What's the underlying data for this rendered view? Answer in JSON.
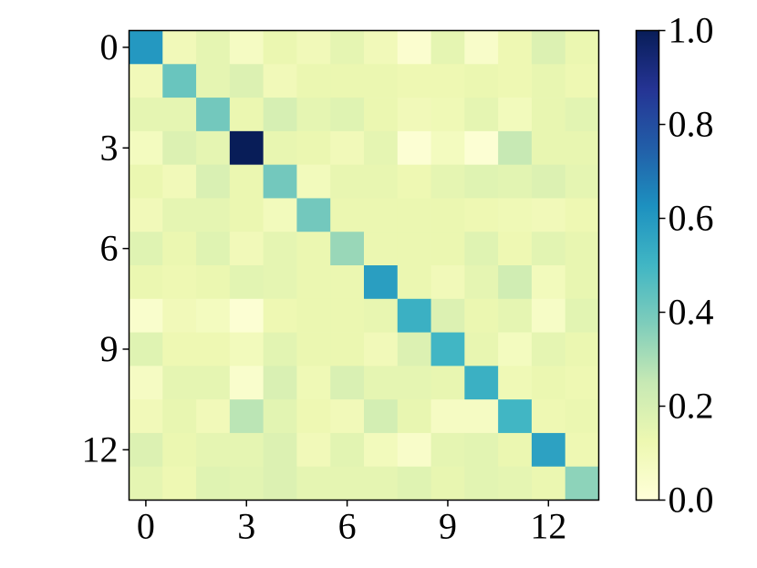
{
  "chart_data": {
    "type": "heatmap",
    "title": "",
    "xlabel": "",
    "ylabel": "",
    "rows": 14,
    "cols": 14,
    "x_ticks": [
      0,
      3,
      6,
      9,
      12
    ],
    "y_ticks": [
      0,
      3,
      6,
      9,
      12
    ],
    "x_tick_labels": [
      "0",
      "3",
      "6",
      "9",
      "12"
    ],
    "y_tick_labels": [
      "0",
      "3",
      "6",
      "9",
      "12"
    ],
    "colormap": "YlGnBu",
    "colorbar": {
      "range": [
        0.0,
        1.0
      ],
      "ticks": [
        0.0,
        0.2,
        0.4,
        0.6,
        0.8,
        1.0
      ],
      "tick_labels": [
        "0.0",
        "0.2",
        "0.4",
        "0.6",
        "0.8",
        "1.0"
      ]
    },
    "values": [
      [
        0.6,
        0.1,
        0.15,
        0.07,
        0.13,
        0.1,
        0.15,
        0.1,
        0.03,
        0.15,
        0.05,
        0.12,
        0.18,
        0.13
      ],
      [
        0.1,
        0.42,
        0.15,
        0.18,
        0.1,
        0.13,
        0.13,
        0.13,
        0.12,
        0.12,
        0.13,
        0.12,
        0.14,
        0.12
      ],
      [
        0.15,
        0.15,
        0.4,
        0.13,
        0.2,
        0.15,
        0.17,
        0.13,
        0.1,
        0.11,
        0.15,
        0.09,
        0.14,
        0.16
      ],
      [
        0.08,
        0.18,
        0.15,
        1.0,
        0.14,
        0.13,
        0.1,
        0.15,
        0.02,
        0.08,
        0.02,
        0.25,
        0.14,
        0.14
      ],
      [
        0.13,
        0.1,
        0.19,
        0.13,
        0.4,
        0.09,
        0.14,
        0.14,
        0.12,
        0.15,
        0.17,
        0.16,
        0.18,
        0.15
      ],
      [
        0.1,
        0.15,
        0.15,
        0.13,
        0.09,
        0.4,
        0.13,
        0.13,
        0.13,
        0.13,
        0.12,
        0.11,
        0.1,
        0.12
      ],
      [
        0.17,
        0.13,
        0.17,
        0.1,
        0.15,
        0.13,
        0.33,
        0.13,
        0.13,
        0.13,
        0.17,
        0.12,
        0.16,
        0.14
      ],
      [
        0.13,
        0.12,
        0.13,
        0.16,
        0.15,
        0.13,
        0.13,
        0.58,
        0.13,
        0.1,
        0.15,
        0.22,
        0.09,
        0.14
      ],
      [
        0.04,
        0.1,
        0.08,
        0.02,
        0.12,
        0.13,
        0.13,
        0.14,
        0.52,
        0.18,
        0.13,
        0.15,
        0.06,
        0.16
      ],
      [
        0.17,
        0.12,
        0.12,
        0.09,
        0.16,
        0.13,
        0.13,
        0.1,
        0.18,
        0.5,
        0.14,
        0.08,
        0.15,
        0.13
      ],
      [
        0.07,
        0.15,
        0.15,
        0.04,
        0.19,
        0.11,
        0.19,
        0.15,
        0.15,
        0.14,
        0.52,
        0.11,
        0.13,
        0.12
      ],
      [
        0.1,
        0.14,
        0.1,
        0.27,
        0.16,
        0.12,
        0.1,
        0.21,
        0.14,
        0.07,
        0.07,
        0.5,
        0.12,
        0.13
      ],
      [
        0.18,
        0.13,
        0.15,
        0.15,
        0.18,
        0.1,
        0.16,
        0.09,
        0.05,
        0.15,
        0.16,
        0.13,
        0.57,
        0.12
      ],
      [
        0.15,
        0.12,
        0.17,
        0.16,
        0.18,
        0.15,
        0.15,
        0.15,
        0.17,
        0.14,
        0.16,
        0.15,
        0.13,
        0.35
      ]
    ]
  }
}
